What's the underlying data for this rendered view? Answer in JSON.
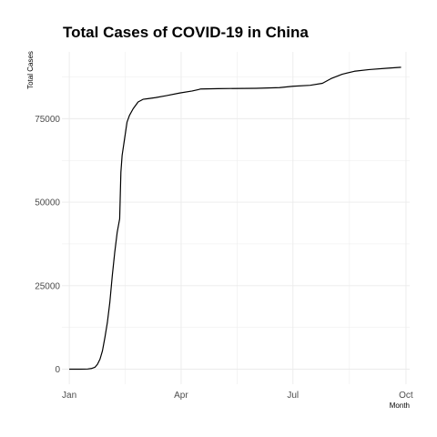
{
  "chart_data": {
    "type": "line",
    "title": "Total Cases of COVID-19 in China",
    "xlabel": "Month",
    "ylabel": "Total Cases",
    "x_ticks": [
      {
        "label": "Jan",
        "date": "2020-01-01"
      },
      {
        "label": "Apr",
        "date": "2020-04-01"
      },
      {
        "label": "Jul",
        "date": "2020-07-01"
      },
      {
        "label": "Oct",
        "date": "2020-10-01"
      }
    ],
    "y_ticks": [
      0,
      25000,
      50000,
      75000
    ],
    "xlim": [
      "2019-12-26",
      "2020-10-04"
    ],
    "ylim": [
      -4500,
      95000
    ],
    "grid": true,
    "line_color": "#000000",
    "series": [
      {
        "x": [
          "2020-01-01",
          "2020-01-10",
          "2020-01-16",
          "2020-01-19",
          "2020-01-22",
          "2020-01-24",
          "2020-01-26",
          "2020-01-28",
          "2020-01-30",
          "2020-02-01",
          "2020-02-03",
          "2020-02-05",
          "2020-02-07",
          "2020-02-09",
          "2020-02-11",
          "2020-02-12",
          "2020-02-13",
          "2020-02-15",
          "2020-02-17",
          "2020-02-19",
          "2020-02-22",
          "2020-02-26",
          "2020-03-01",
          "2020-03-05",
          "2020-03-11",
          "2020-03-20",
          "2020-03-31",
          "2020-04-10",
          "2020-04-15",
          "2020-04-17",
          "2020-05-01",
          "2020-06-01",
          "2020-06-20",
          "2020-07-01",
          "2020-07-15",
          "2020-07-25",
          "2020-08-01",
          "2020-08-10",
          "2020-08-20",
          "2020-09-01",
          "2020-09-15",
          "2020-09-27"
        ],
        "y": [
          0,
          0,
          50,
          200,
          600,
          1500,
          3000,
          5500,
          9500,
          14000,
          20000,
          28000,
          35000,
          41000,
          45000,
          59000,
          64000,
          69000,
          74000,
          76000,
          78000,
          80000,
          80800,
          81000,
          81300,
          81900,
          82700,
          83300,
          83700,
          83900,
          84000,
          84100,
          84300,
          84700,
          85000,
          85600,
          87000,
          88300,
          89200,
          89700,
          90100,
          90400
        ]
      }
    ]
  }
}
